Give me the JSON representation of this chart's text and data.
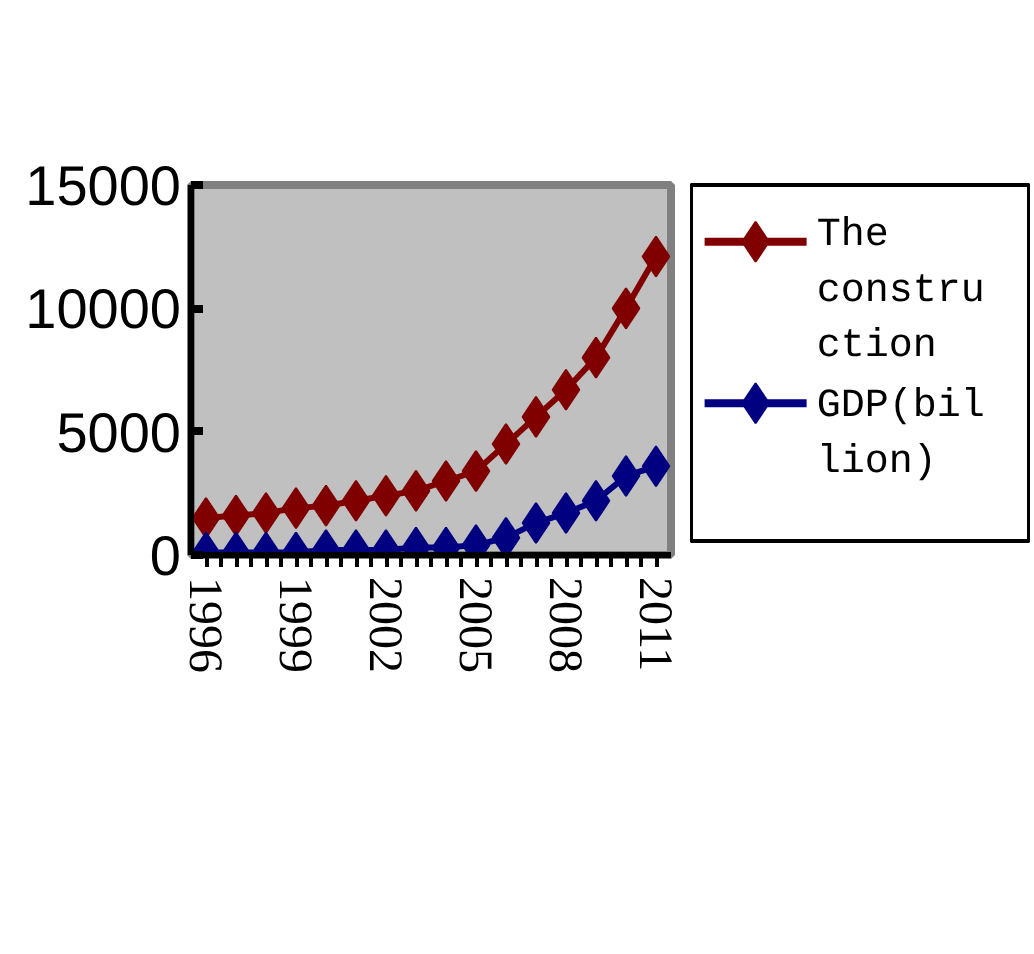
{
  "chart_data": {
    "type": "line",
    "categories": [
      "1996",
      null,
      null,
      "1999",
      null,
      null,
      "2002",
      null,
      null,
      "2005",
      null,
      null,
      "2008",
      null,
      null,
      "2011"
    ],
    "series": [
      {
        "name": "The construction",
        "color": "#800000",
        "values": [
          1500,
          1600,
          1700,
          1900,
          2000,
          2200,
          2400,
          2600,
          3000,
          3400,
          4500,
          5600,
          6700,
          8000,
          10000,
          12100
        ]
      },
      {
        "name": "GDP(billion)",
        "color": "#000080",
        "values": [
          100,
          100,
          100,
          100,
          200,
          200,
          200,
          300,
          300,
          400,
          700,
          1300,
          1700,
          2200,
          3200,
          3600
        ]
      }
    ],
    "ylim": [
      0,
      15000
    ],
    "yticks": [
      0,
      5000,
      10000,
      15000
    ],
    "grid": false,
    "legend": "right",
    "marker": "diamond",
    "line_style": "solid"
  }
}
